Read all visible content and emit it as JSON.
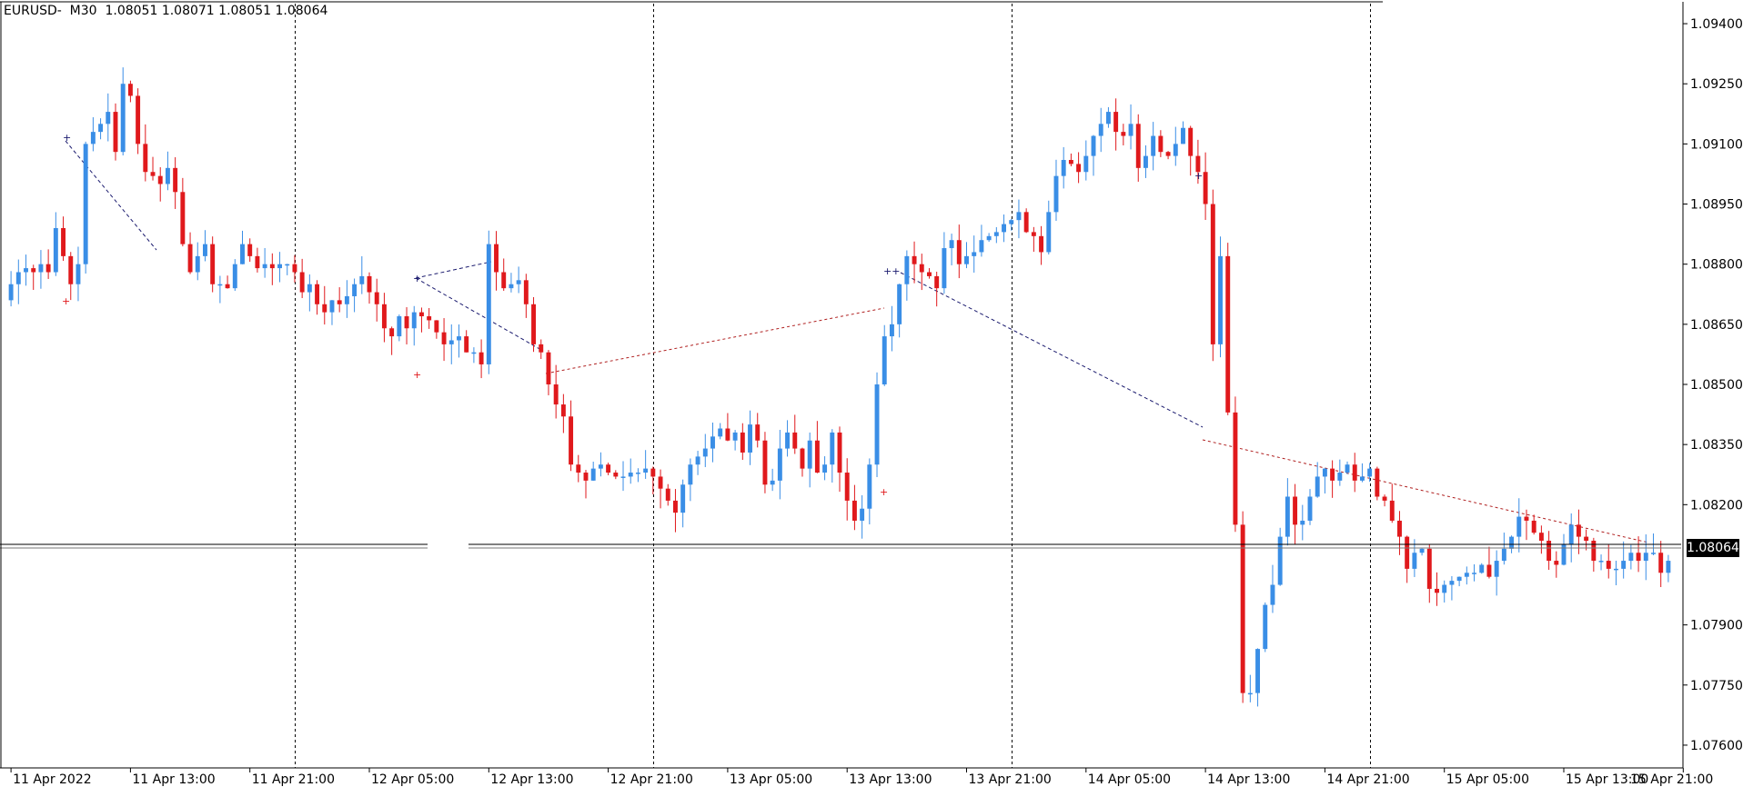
{
  "chart_title": "EURUSD-  M30  1.08051 1.08071 1.08051 1.08064",
  "current_price": "1.08064",
  "colors": {
    "bull": "#3a8ee6",
    "bear": "#e0191c",
    "grid": "#000000",
    "trendline_blue": "#1a1a6e",
    "trendline_red": "#b02020",
    "price_line": "#000000"
  },
  "chart_data": {
    "type": "candlestick",
    "symbol": "EURUSD",
    "timeframe": "M30",
    "ohlc_header": [
      "1.08051",
      "1.08071",
      "1.08051",
      "1.08064"
    ],
    "y_ticks": [
      "1.09400",
      "1.09250",
      "1.09100",
      "1.08950",
      "1.08800",
      "1.08650",
      "1.08500",
      "1.08350",
      "1.08200",
      "1.08064",
      "1.07900",
      "1.07750",
      "1.07600"
    ],
    "y_tick_values": [
      1.094,
      1.0925,
      1.091,
      1.0895,
      1.088,
      1.0865,
      1.085,
      1.0835,
      1.082,
      1.08064,
      1.079,
      1.0775,
      1.076
    ],
    "ylim": [
      1.0755,
      1.0945
    ],
    "x_ticks": [
      "11 Apr 2022",
      "11 Apr 13:00",
      "11 Apr 21:00",
      "12 Apr 05:00",
      "12 Apr 13:00",
      "12 Apr 21:00",
      "13 Apr 05:00",
      "13 Apr 13:00",
      "13 Apr 21:00",
      "14 Apr 05:00",
      "14 Apr 13:00",
      "14 Apr 21:00",
      "15 Apr 05:00",
      "15 Apr 13:00",
      "15 Apr 21:00"
    ],
    "x_tick_bar_index": [
      0,
      16,
      32,
      48,
      64,
      80,
      96,
      112,
      128,
      144,
      160,
      176,
      192,
      208,
      224
    ],
    "period_separators_bar_index": [
      38,
      86,
      134,
      182
    ],
    "candles_close": [
      1.0875,
      1.0878,
      1.0879,
      1.0878,
      1.088,
      1.0878,
      1.0889,
      1.0882,
      1.0875,
      1.088,
      1.091,
      1.0913,
      1.0915,
      1.0918,
      1.0908,
      1.0925,
      1.0922,
      1.091,
      1.0903,
      1.0902,
      1.09,
      1.0904,
      1.0898,
      1.0885,
      1.0878,
      1.0882,
      1.0885,
      1.0875,
      1.0875,
      1.0874,
      1.088,
      1.0885,
      1.0882,
      1.0879,
      1.088,
      1.0879,
      1.088,
      1.088,
      1.0878,
      1.0873,
      1.0875,
      1.087,
      1.0868,
      1.0871,
      1.087,
      1.0872,
      1.0875,
      1.0877,
      1.0873,
      1.087,
      1.0864,
      1.0862,
      1.0867,
      1.0864,
      1.0868,
      1.0867,
      1.0866,
      1.0863,
      1.086,
      1.0861,
      1.0862,
      1.0858,
      1.0858,
      1.0855,
      1.0885,
      1.0878,
      1.0874,
      1.0875,
      1.0876,
      1.087,
      1.086,
      1.0858,
      1.085,
      1.0845,
      1.0842,
      1.083,
      1.0828,
      1.0826,
      1.0829,
      1.083,
      1.0828,
      1.0827,
      1.0827,
      1.0828,
      1.0828,
      1.0829,
      1.0827,
      1.0824,
      1.0821,
      1.0818,
      1.0825,
      1.083,
      1.0832,
      1.0834,
      1.0837,
      1.0839,
      1.0836,
      1.0838,
      1.0833,
      1.084,
      1.0836,
      1.0825,
      1.0826,
      1.0834,
      1.0838,
      1.0834,
      1.0829,
      1.0836,
      1.0828,
      1.083,
      1.0838,
      1.0828,
      1.0821,
      1.0816,
      1.0819,
      1.083,
      1.085,
      1.0862,
      1.0865,
      1.0875,
      1.0882,
      1.088,
      1.0878,
      1.0877,
      1.0874,
      1.0884,
      1.0886,
      1.088,
      1.0882,
      1.0883,
      1.0886,
      1.0887,
      1.0888,
      1.089,
      1.0891,
      1.0893,
      1.0888,
      1.0887,
      1.0883,
      1.0893,
      1.0902,
      1.0906,
      1.0905,
      1.0903,
      1.0907,
      1.0912,
      1.0915,
      1.0918,
      1.0913,
      1.0912,
      1.0915,
      1.0904,
      1.0907,
      1.0912,
      1.0908,
      1.0907,
      1.091,
      1.0914,
      1.0907,
      1.0903,
      1.0895,
      1.086,
      1.0882,
      1.0843,
      1.0815,
      1.0773,
      1.0773,
      1.0784,
      1.0795,
      1.08,
      1.0812,
      1.0822,
      1.0815,
      1.0816,
      1.0822,
      1.0827,
      1.0829,
      1.0826,
      1.0828,
      1.083,
      1.0826,
      1.0827,
      1.0829,
      1.0822,
      1.0821,
      1.0816,
      1.0812,
      1.0804,
      1.0808,
      1.0809,
      1.0799,
      1.0798,
      1.08,
      1.0801,
      1.0802,
      1.0803,
      1.0803,
      1.0805,
      1.0802,
      1.0806,
      1.0809,
      1.0812,
      1.0817,
      1.0816,
      1.0813,
      1.0811,
      1.0806,
      1.0805,
      1.081,
      1.0815,
      1.0812,
      1.0811,
      1.0806,
      1.0806,
      1.0804,
      1.0804,
      1.0806,
      1.0808,
      1.0806,
      1.0808,
      1.0808,
      1.0803,
      1.0806
    ]
  }
}
